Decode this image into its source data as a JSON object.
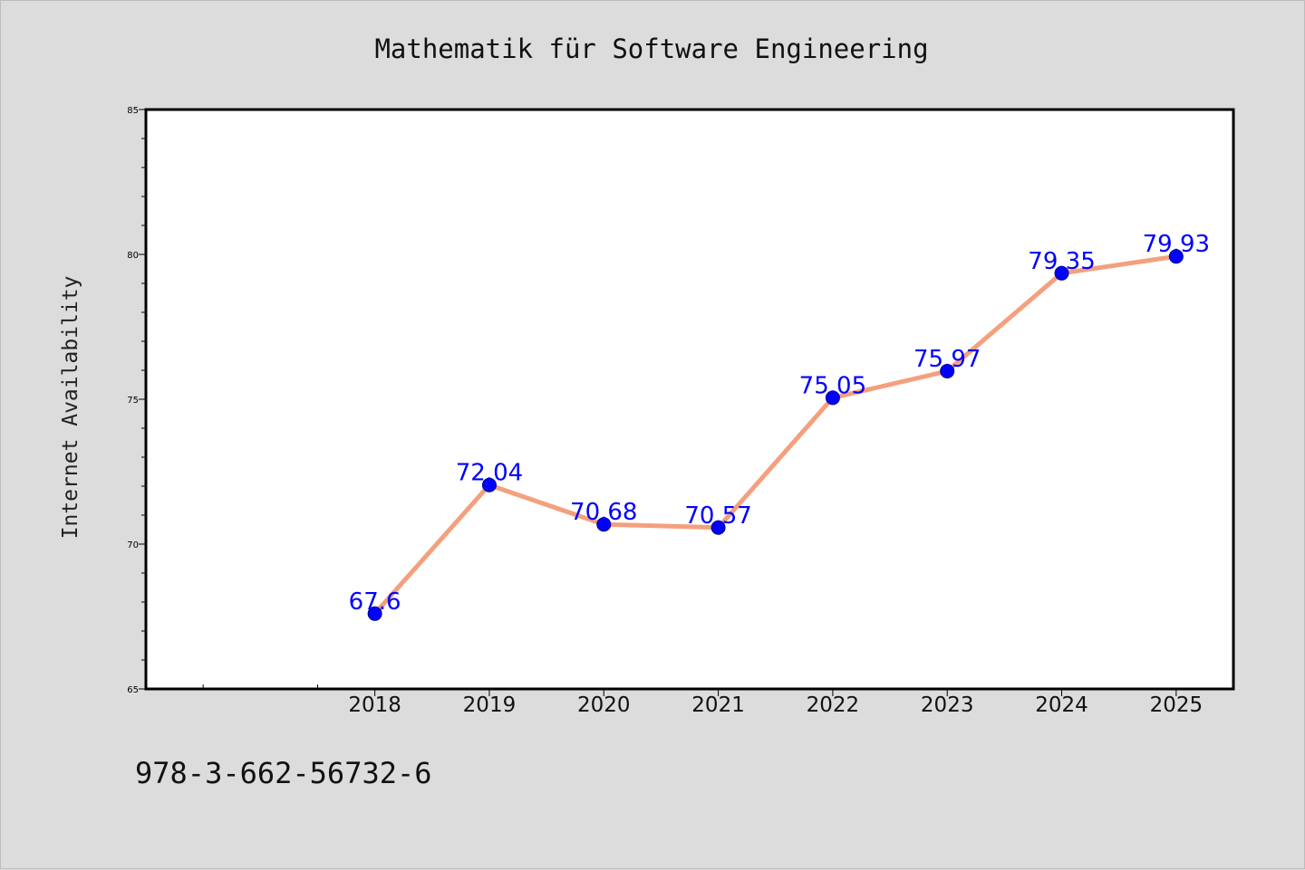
{
  "chart_data": {
    "type": "line",
    "title": "Mathematik für Software Engineering",
    "ylabel": "Internet Availability",
    "xlabel": "",
    "categories": [
      "2018",
      "2019",
      "2020",
      "2021",
      "2022",
      "2023",
      "2024",
      "2025"
    ],
    "series": [
      {
        "values": [
          67.6,
          72.04,
          70.68,
          70.57,
          75.05,
          75.97,
          79.35,
          79.93
        ]
      }
    ],
    "data_labels": [
      "67.6",
      "72.04",
      "70.68",
      "70.57",
      "75.05",
      "75.97",
      "79.35",
      "79.93"
    ],
    "ylim": [
      65,
      85
    ],
    "y_ticks": [
      "65",
      "70",
      "75",
      "80",
      "85"
    ],
    "x_range": [
      2016,
      2025.5
    ],
    "grid": false,
    "legend": "none",
    "colors": {
      "line": "#f4a07d",
      "marker": "#0000ff",
      "label": "#0000ff",
      "background": "#dcdcdc",
      "plot": "#ffffff"
    }
  },
  "footer": {
    "isbn": "978-3-662-56732-6"
  }
}
